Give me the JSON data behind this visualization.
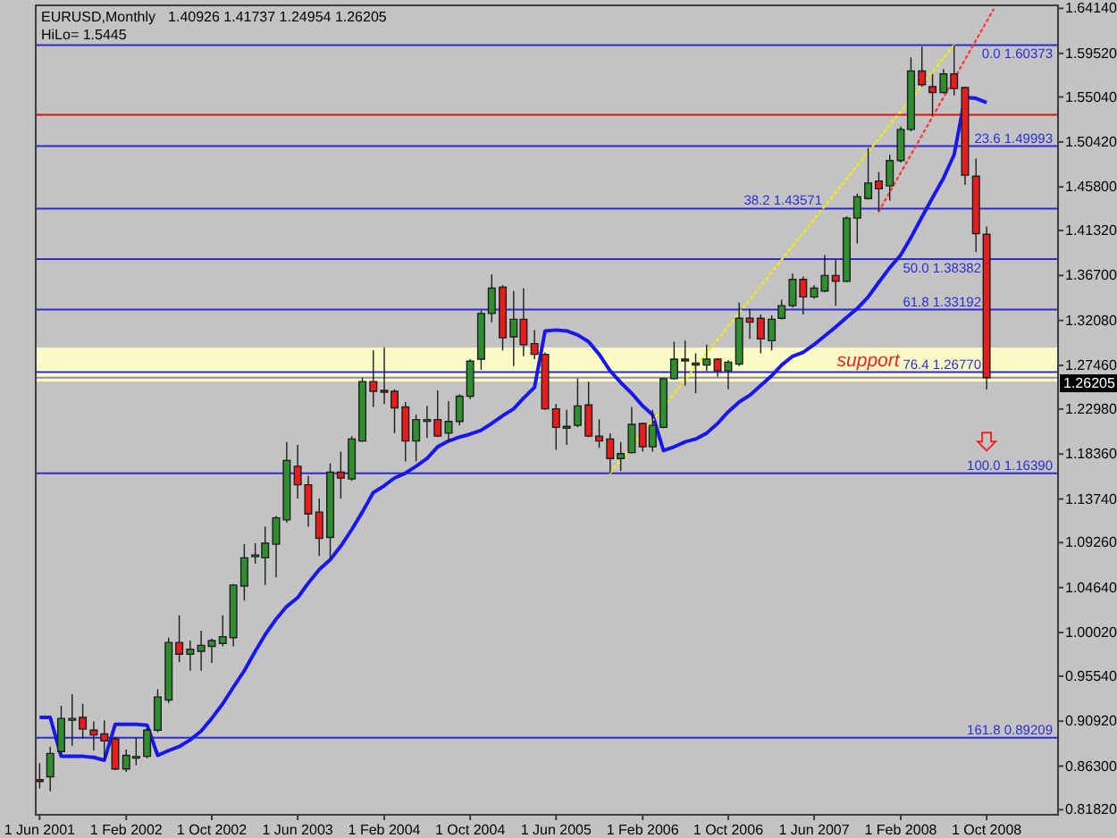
{
  "chart_data": {
    "type": "candlestick",
    "title": "EURUSD,Monthly",
    "annotations": [
      "1.40926 1.41737 1.24954 1.26205",
      "HiLo= 1.5445",
      {
        "text": "support",
        "x": "2007-11",
        "y": 1.2677
      }
    ],
    "x": [
      "2001-06",
      "2001-07",
      "2001-08",
      "2001-09",
      "2001-10",
      "2001-11",
      "2001-12",
      "2002-01",
      "2002-02",
      "2002-03",
      "2002-04",
      "2002-05",
      "2002-06",
      "2002-07",
      "2002-08",
      "2002-09",
      "2002-10",
      "2002-11",
      "2002-12",
      "2003-01",
      "2003-02",
      "2003-03",
      "2003-04",
      "2003-05",
      "2003-06",
      "2003-07",
      "2003-08",
      "2003-09",
      "2003-10",
      "2003-11",
      "2003-12",
      "2004-01",
      "2004-02",
      "2004-03",
      "2004-04",
      "2004-05",
      "2004-06",
      "2004-07",
      "2004-08",
      "2004-09",
      "2004-10",
      "2004-11",
      "2004-12",
      "2005-01",
      "2005-02",
      "2005-03",
      "2005-04",
      "2005-05",
      "2005-06",
      "2005-07",
      "2005-08",
      "2005-09",
      "2005-10",
      "2005-11",
      "2005-12",
      "2006-01",
      "2006-02",
      "2006-03",
      "2006-04",
      "2006-05",
      "2006-06",
      "2006-07",
      "2006-08",
      "2006-09",
      "2006-10",
      "2006-11",
      "2006-12",
      "2007-01",
      "2007-02",
      "2007-03",
      "2007-04",
      "2007-05",
      "2007-06",
      "2007-07",
      "2007-08",
      "2007-09",
      "2007-10",
      "2007-11",
      "2007-12",
      "2008-01",
      "2008-02",
      "2008-03",
      "2008-04",
      "2008-05",
      "2008-06",
      "2008-07",
      "2008-08",
      "2008-09",
      "2008-10"
    ],
    "ohlc": [
      [
        0.849,
        0.866,
        0.84,
        0.848
      ],
      [
        0.852,
        0.883,
        0.837,
        0.876
      ],
      [
        0.878,
        0.925,
        0.875,
        0.912
      ],
      [
        0.911,
        0.937,
        0.884,
        0.912
      ],
      [
        0.913,
        0.927,
        0.891,
        0.901
      ],
      [
        0.9,
        0.909,
        0.879,
        0.895
      ],
      [
        0.896,
        0.91,
        0.87,
        0.889
      ],
      [
        0.891,
        0.893,
        0.859,
        0.86
      ],
      [
        0.86,
        0.88,
        0.857,
        0.874
      ],
      [
        0.872,
        0.892,
        0.864,
        0.873
      ],
      [
        0.873,
        0.902,
        0.871,
        0.9
      ],
      [
        0.9,
        0.942,
        0.898,
        0.934
      ],
      [
        0.931,
        0.995,
        0.928,
        0.99
      ],
      [
        0.99,
        1.018,
        0.97,
        0.978
      ],
      [
        0.978,
        0.992,
        0.961,
        0.983
      ],
      [
        0.981,
        1.002,
        0.961,
        0.987
      ],
      [
        0.986,
        0.994,
        0.969,
        0.992
      ],
      [
        0.989,
        1.018,
        0.986,
        0.996
      ],
      [
        0.995,
        1.05,
        0.986,
        1.049
      ],
      [
        1.048,
        1.091,
        1.033,
        1.077
      ],
      [
        1.079,
        1.092,
        1.071,
        1.08
      ],
      [
        1.077,
        1.109,
        1.049,
        1.092
      ],
      [
        1.091,
        1.12,
        1.057,
        1.118
      ],
      [
        1.116,
        1.196,
        1.113,
        1.177
      ],
      [
        1.171,
        1.193,
        1.138,
        1.152
      ],
      [
        1.152,
        1.161,
        1.109,
        1.122
      ],
      [
        1.124,
        1.138,
        1.079,
        1.097
      ],
      [
        1.098,
        1.174,
        1.077,
        1.165
      ],
      [
        1.165,
        1.186,
        1.138,
        1.159
      ],
      [
        1.158,
        1.202,
        1.156,
        1.199
      ],
      [
        1.197,
        1.262,
        1.196,
        1.258
      ],
      [
        1.258,
        1.29,
        1.232,
        1.248
      ],
      [
        1.249,
        1.293,
        1.235,
        1.248
      ],
      [
        1.248,
        1.25,
        1.205,
        1.231
      ],
      [
        1.232,
        1.237,
        1.176,
        1.197
      ],
      [
        1.197,
        1.224,
        1.176,
        1.219
      ],
      [
        1.218,
        1.233,
        1.2,
        1.219
      ],
      [
        1.219,
        1.249,
        1.201,
        1.202
      ],
      [
        1.205,
        1.238,
        1.196,
        1.217
      ],
      [
        1.217,
        1.245,
        1.213,
        1.243
      ],
      [
        1.243,
        1.281,
        1.24,
        1.279
      ],
      [
        1.281,
        1.331,
        1.27,
        1.328
      ],
      [
        1.328,
        1.368,
        1.319,
        1.354
      ],
      [
        1.355,
        1.357,
        1.29,
        1.303
      ],
      [
        1.304,
        1.351,
        1.274,
        1.322
      ],
      [
        1.322,
        1.354,
        1.284,
        1.296
      ],
      [
        1.297,
        1.311,
        1.281,
        1.286
      ],
      [
        1.286,
        1.288,
        1.229,
        1.23
      ],
      [
        1.23,
        1.235,
        1.188,
        1.211
      ],
      [
        1.211,
        1.229,
        1.193,
        1.212
      ],
      [
        1.213,
        1.261,
        1.211,
        1.233
      ],
      [
        1.234,
        1.258,
        1.201,
        1.202
      ],
      [
        1.202,
        1.219,
        1.19,
        1.197
      ],
      [
        1.199,
        1.205,
        1.1639,
        1.179
      ],
      [
        1.179,
        1.196,
        1.166,
        1.184
      ],
      [
        1.185,
        1.232,
        1.184,
        1.214
      ],
      [
        1.215,
        1.216,
        1.186,
        1.191
      ],
      [
        1.191,
        1.229,
        1.186,
        1.213
      ],
      [
        1.211,
        1.262,
        1.21,
        1.261
      ],
      [
        1.261,
        1.299,
        1.26,
        1.281
      ],
      [
        1.281,
        1.3,
        1.254,
        1.28
      ],
      [
        1.276,
        1.287,
        1.246,
        1.277
      ],
      [
        1.275,
        1.296,
        1.269,
        1.281
      ],
      [
        1.281,
        1.282,
        1.263,
        1.269
      ],
      [
        1.269,
        1.28,
        1.25,
        1.278
      ],
      [
        1.276,
        1.339,
        1.274,
        1.323
      ],
      [
        1.323,
        1.333,
        1.302,
        1.319
      ],
      [
        1.323,
        1.327,
        1.287,
        1.302
      ],
      [
        1.3,
        1.326,
        1.29,
        1.322
      ],
      [
        1.323,
        1.342,
        1.322,
        1.336
      ],
      [
        1.336,
        1.369,
        1.334,
        1.363
      ],
      [
        1.363,
        1.366,
        1.327,
        1.345
      ],
      [
        1.345,
        1.357,
        1.343,
        1.354
      ],
      [
        1.351,
        1.388,
        1.35,
        1.367
      ],
      [
        1.367,
        1.383,
        1.336,
        1.361
      ],
      [
        1.361,
        1.428,
        1.36,
        1.426
      ],
      [
        1.426,
        1.451,
        1.4,
        1.448
      ],
      [
        1.446,
        1.498,
        1.445,
        1.462
      ],
      [
        1.464,
        1.473,
        1.433,
        1.456
      ],
      [
        1.459,
        1.491,
        1.444,
        1.485
      ],
      [
        1.485,
        1.52,
        1.483,
        1.517
      ],
      [
        1.517,
        1.591,
        1.515,
        1.577
      ],
      [
        1.577,
        1.602,
        1.561,
        1.563
      ],
      [
        1.561,
        1.574,
        1.531,
        1.555
      ],
      [
        1.555,
        1.579,
        1.554,
        1.574
      ],
      [
        1.574,
        1.60373,
        1.552,
        1.559
      ],
      [
        1.56,
        1.561,
        1.46,
        1.47
      ],
      [
        1.469,
        1.487,
        1.391,
        1.41
      ],
      [
        1.40926,
        1.41737,
        1.24954,
        1.26205
      ]
    ],
    "colors": [
      "#e81c1c",
      "#2f8f2f",
      "#2f8f2f",
      "#2f8f2f",
      "#e81c1c",
      "#e81c1c",
      "#e81c1c",
      "#e81c1c",
      "#2f8f2f",
      "#2f8f2f",
      "#2f8f2f",
      "#2f8f2f",
      "#2f8f2f",
      "#e81c1c",
      "#2f8f2f",
      "#2f8f2f",
      "#2f8f2f",
      "#2f8f2f",
      "#2f8f2f",
      "#2f8f2f",
      "#2f8f2f",
      "#2f8f2f",
      "#2f8f2f",
      "#2f8f2f",
      "#e81c1c",
      "#e81c1c",
      "#e81c1c",
      "#2f8f2f",
      "#e81c1c",
      "#2f8f2f",
      "#2f8f2f",
      "#e81c1c",
      "#e81c1c",
      "#e81c1c",
      "#e81c1c",
      "#2f8f2f",
      "#2f8f2f",
      "#e81c1c",
      "#2f8f2f",
      "#2f8f2f",
      "#2f8f2f",
      "#2f8f2f",
      "#2f8f2f",
      "#e81c1c",
      "#2f8f2f",
      "#e81c1c",
      "#e81c1c",
      "#e81c1c",
      "#e81c1c",
      "#2f8f2f",
      "#2f8f2f",
      "#e81c1c",
      "#e81c1c",
      "#e81c1c",
      "#2f8f2f",
      "#2f8f2f",
      "#e81c1c",
      "#2f8f2f",
      "#2f8f2f",
      "#2f8f2f",
      "#e81c1c",
      "#2f8f2f",
      "#2f8f2f",
      "#e81c1c",
      "#2f8f2f",
      "#2f8f2f",
      "#e81c1c",
      "#e81c1c",
      "#2f8f2f",
      "#2f8f2f",
      "#2f8f2f",
      "#e81c1c",
      "#2f8f2f",
      "#2f8f2f",
      "#e81c1c",
      "#2f8f2f",
      "#2f8f2f",
      "#2f8f2f",
      "#e81c1c",
      "#2f8f2f",
      "#2f8f2f",
      "#2f8f2f",
      "#e81c1c",
      "#e81c1c",
      "#2f8f2f",
      "#e81c1c",
      "#e81c1c",
      "#e81c1c",
      "#e81c1c"
    ],
    "series": [
      {
        "type": "line",
        "color": "#1717ee",
        "values": [
          0.913,
          0.913,
          0.873,
          0.873,
          0.873,
          0.872,
          0.869,
          0.906,
          0.906,
          0.906,
          0.905,
          0.874,
          0.879,
          0.883,
          0.89,
          0.899,
          0.912,
          0.927,
          0.944,
          0.961,
          0.981,
          0.998,
          1.014,
          1.027,
          1.036,
          1.051,
          1.065,
          1.075,
          1.089,
          1.106,
          1.124,
          1.144,
          1.151,
          1.159,
          1.164,
          1.171,
          1.179,
          1.191,
          1.197,
          1.201,
          1.204,
          1.208,
          1.215,
          1.223,
          1.23,
          1.241,
          1.252,
          1.31,
          1.311,
          1.31,
          1.306,
          1.299,
          1.286,
          1.269,
          1.257,
          1.246,
          1.233,
          1.224,
          1.187,
          1.191,
          1.196,
          1.199,
          1.205,
          1.215,
          1.227,
          1.237,
          1.244,
          1.254,
          1.264,
          1.275,
          1.284,
          1.288,
          1.296,
          1.305,
          1.314,
          1.324,
          1.333,
          1.345,
          1.36,
          1.375,
          1.388,
          1.406,
          1.427,
          1.447,
          1.467,
          1.491,
          1.55,
          1.549,
          1.5445
        ]
      },
      {
        "type": "line",
        "color": "#f0f000",
        "line_style": "dotted",
        "x": [
          "2005-11",
          "2008-07"
        ],
        "values": [
          1.1639,
          1.60373
        ]
      },
      {
        "type": "line",
        "color": "#ff3a3a",
        "line_style": "dotted",
        "x": [
          "2007-12",
          "2008-10-20"
        ],
        "values": [
          1.433,
          1.64
        ]
      }
    ],
    "xlim": [
      "2001-05-21",
      "2009-04-21"
    ],
    "xticks": [
      {
        "value": "2001-06-01",
        "label": "1 Jun 2001"
      },
      {
        "value": "2002-02-01",
        "label": "1 Feb 2002"
      },
      {
        "value": "2002-10-01",
        "label": "1 Oct 2002"
      },
      {
        "value": "2003-06-01",
        "label": "1 Jun 2003"
      },
      {
        "value": "2004-02-01",
        "label": "1 Feb 2004"
      },
      {
        "value": "2004-10-01",
        "label": "1 Oct 2004"
      },
      {
        "value": "2005-06-01",
        "label": "1 Jun 2005"
      },
      {
        "value": "2006-02-01",
        "label": "1 Feb 2006"
      },
      {
        "value": "2006-10-01",
        "label": "1 Oct 2006"
      },
      {
        "value": "2007-06-01",
        "label": "1 Jun 2007"
      },
      {
        "value": "2008-02-01",
        "label": "1 Feb 2008"
      },
      {
        "value": "2008-10-01",
        "label": "1 Oct 2008"
      }
    ],
    "ylim": [
      0.813,
      1.6445
    ],
    "yticks": [
      {
        "value": 1.6414,
        "label": "1.64140"
      },
      {
        "value": 1.5952,
        "label": "1.59520"
      },
      {
        "value": 1.5504,
        "label": "1.55040"
      },
      {
        "value": 1.5042,
        "label": "1.50420"
      },
      {
        "value": 1.458,
        "label": "1.45800"
      },
      {
        "value": 1.4132,
        "label": "1.41320"
      },
      {
        "value": 1.367,
        "label": "1.36700"
      },
      {
        "value": 1.3208,
        "label": "1.32080"
      },
      {
        "value": 1.2746,
        "label": "1.27460"
      },
      {
        "value": 1.2298,
        "label": "1.22980"
      },
      {
        "value": 1.1836,
        "label": "1.18360"
      },
      {
        "value": 1.1374,
        "label": "1.13740"
      },
      {
        "value": 1.0926,
        "label": "1.09260"
      },
      {
        "value": 1.0464,
        "label": "1.04640"
      },
      {
        "value": 1.0002,
        "label": "1.00020"
      },
      {
        "value": 0.9554,
        "label": "0.95540"
      },
      {
        "value": 0.9092,
        "label": "0.90920"
      },
      {
        "value": 0.863,
        "label": "0.86300"
      },
      {
        "value": 0.8182,
        "label": "0.81820"
      }
    ],
    "ref_lines": [
      {
        "axis": "y",
        "value": 1.60373,
        "label": "0.0 1.60373",
        "color": "#2b2bd6"
      },
      {
        "axis": "y",
        "value": 1.49993,
        "label": "23.6 1.49993",
        "color": "#2b2bd6"
      },
      {
        "axis": "y",
        "value": 1.43571,
        "label": "38.2 1.43571",
        "color": "#2b2bd6"
      },
      {
        "axis": "y",
        "value": 1.38382,
        "label": "50.0 1.38382",
        "color": "#2b2bd6"
      },
      {
        "axis": "y",
        "value": 1.33192,
        "label": "61.8 1.33192",
        "color": "#2b2bd6"
      },
      {
        "axis": "y",
        "value": 1.2677,
        "label": "76.4 1.26770",
        "color": "#2b2bd6"
      },
      {
        "axis": "y",
        "value": 1.1639,
        "label": "100.0 1.16390",
        "color": "#2b2bd6"
      },
      {
        "axis": "y",
        "value": 0.89209,
        "label": "161.8 0.89209",
        "color": "#2b2bd6"
      },
      {
        "axis": "y",
        "value": 1.26205,
        "label": "1.26205",
        "color": "#8c8cae"
      },
      {
        "axis": "y",
        "value": 1.532,
        "color": "#e01010"
      }
    ],
    "bands": [
      {
        "axis": "y",
        "from": 1.258,
        "to": 1.293,
        "color": "#fbfbc6"
      }
    ]
  }
}
